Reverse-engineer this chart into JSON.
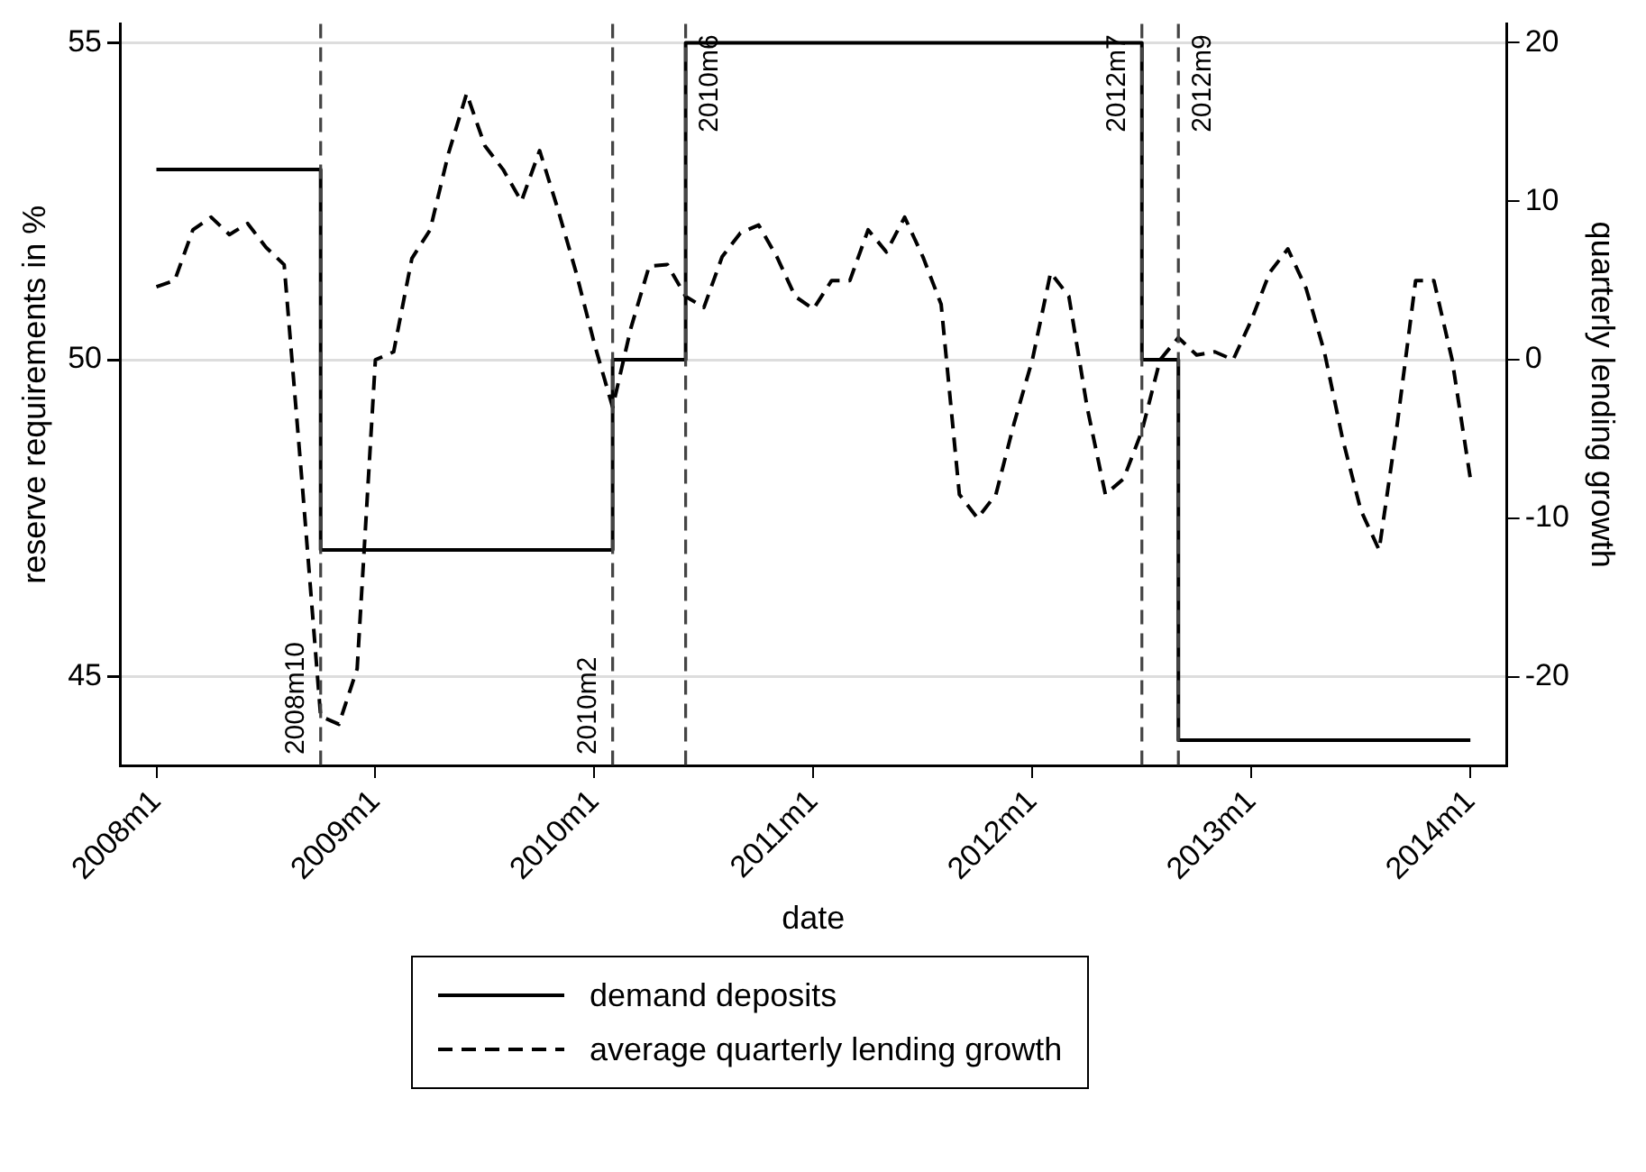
{
  "chart_data": {
    "type": "line",
    "xlabel": "date",
    "ylabel": "reserve requirements in %",
    "y2label": "quarterly lending growth",
    "xlim": [
      "2007-11",
      "2014-03"
    ],
    "xticks": [
      {
        "value": "2008-01",
        "label": "2008m1"
      },
      {
        "value": "2009-01",
        "label": "2009m1"
      },
      {
        "value": "2010-01",
        "label": "2010m1"
      },
      {
        "value": "2011-01",
        "label": "2011m1"
      },
      {
        "value": "2012-01",
        "label": "2012m1"
      },
      {
        "value": "2013-01",
        "label": "2013m1"
      },
      {
        "value": "2014-01",
        "label": "2014m1"
      }
    ],
    "ylim": [
      43.6,
      55.3
    ],
    "yticks": [
      45,
      50,
      55
    ],
    "y2lim": [
      -25.6,
      21.2
    ],
    "y2ticks": [
      -20,
      -10,
      0,
      10,
      20
    ],
    "grid": "y",
    "legend": "bottom",
    "marker": "none",
    "series": [
      {
        "name": "demand deposits",
        "type": "step",
        "color": "#000000",
        "line_style": "solid",
        "x": [
          "2008-01",
          "2008-10",
          "2010-02",
          "2010-06",
          "2012-07",
          "2012-09",
          "2014-01"
        ],
        "values": [
          53,
          47,
          50,
          55,
          50,
          44,
          44
        ]
      },
      {
        "name": "average quarterly lending growth",
        "type": "line",
        "axis": "y2",
        "color": "#000000",
        "line_style": "dashed",
        "x": [
          "2008-01",
          "2008-02",
          "2008-03",
          "2008-04",
          "2008-05",
          "2008-06",
          "2008-07",
          "2008-08",
          "2008-09",
          "2008-10",
          "2008-11",
          "2008-12",
          "2009-01",
          "2009-02",
          "2009-03",
          "2009-04",
          "2009-05",
          "2009-06",
          "2009-07",
          "2009-08",
          "2009-09",
          "2009-10",
          "2009-11",
          "2009-12",
          "2010-01",
          "2010-02",
          "2010-03",
          "2010-04",
          "2010-05",
          "2010-06",
          "2010-07",
          "2010-08",
          "2010-09",
          "2010-10",
          "2010-11",
          "2010-12",
          "2011-01",
          "2011-02",
          "2011-03",
          "2011-04",
          "2011-05",
          "2011-06",
          "2011-07",
          "2011-08",
          "2011-09",
          "2011-10",
          "2011-11",
          "2011-12",
          "2012-01",
          "2012-02",
          "2012-03",
          "2012-04",
          "2012-05",
          "2012-06",
          "2012-07",
          "2012-08",
          "2012-09",
          "2012-10",
          "2012-11",
          "2012-12",
          "2013-01",
          "2013-02",
          "2013-03",
          "2013-04",
          "2013-05",
          "2013-06",
          "2013-07",
          "2013-08",
          "2013-09",
          "2013-10",
          "2013-11",
          "2013-12",
          "2014-01"
        ],
        "values": [
          4.6,
          5,
          8.2,
          9,
          7.9,
          8.6,
          7.1,
          6,
          -8,
          -22.5,
          -23,
          -19.5,
          0,
          0.5,
          6.4,
          8.2,
          13,
          16.8,
          13.5,
          12,
          10,
          13.2,
          9.5,
          5.5,
          1,
          -3,
          2,
          5.9,
          6,
          4,
          3.3,
          6.5,
          8,
          8.5,
          6.5,
          4,
          3.2,
          5,
          5,
          8.2,
          6.8,
          9,
          6.5,
          3.5,
          -8.5,
          -10,
          -8.5,
          -4,
          0,
          5.5,
          4,
          -3,
          -8.5,
          -7.5,
          -4.5,
          0,
          1.4,
          0.3,
          0.5,
          0,
          2.5,
          5.5,
          7,
          4.5,
          0.5,
          -5,
          -9.5,
          -12,
          -4,
          5,
          5,
          0,
          -7.5
        ]
      }
    ],
    "ref_lines": [
      {
        "axis": "x",
        "value": "2008-10",
        "label": "2008m10",
        "color": "#444444",
        "line_style": "dashed"
      },
      {
        "axis": "x",
        "value": "2010-02",
        "label": "2010m2",
        "color": "#444444",
        "line_style": "dashed"
      },
      {
        "axis": "x",
        "value": "2010-06",
        "label": "2010m6",
        "color": "#444444",
        "line_style": "dashed"
      },
      {
        "axis": "x",
        "value": "2012-07",
        "label": "2012m7",
        "color": "#444444",
        "line_style": "dashed"
      },
      {
        "axis": "x",
        "value": "2012-09",
        "label": "2012m9",
        "color": "#444444",
        "line_style": "dashed"
      }
    ]
  }
}
